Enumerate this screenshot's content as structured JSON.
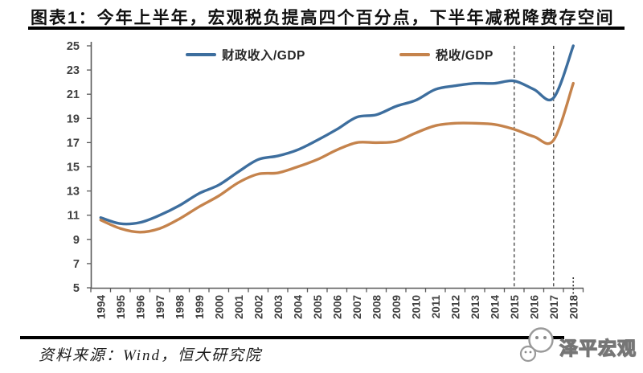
{
  "page": {
    "title": "图表1：今年上半年，宏观税负提高四个百分点，下半年减税降费存空间",
    "source_note": "资料来源：Wind，恒大研究院",
    "watermark": "泽平宏观"
  },
  "chart_data": {
    "type": "line",
    "title": "",
    "xlabel": "",
    "ylabel": "",
    "x": [
      "1994",
      "1995",
      "1996",
      "1997",
      "1998",
      "1999",
      "2000",
      "2001",
      "2002",
      "2003",
      "2004",
      "2005",
      "2006",
      "2007",
      "2008",
      "2009",
      "2010",
      "2011",
      "2012",
      "2013",
      "2014",
      "2015",
      "2016",
      "2017",
      "2018"
    ],
    "series": [
      {
        "name": "财政收入/GDP",
        "color": "#3d6e9e",
        "values": [
          10.8,
          10.3,
          10.4,
          11.0,
          11.8,
          12.8,
          13.5,
          14.6,
          15.6,
          15.9,
          16.4,
          17.2,
          18.1,
          19.1,
          19.3,
          20.0,
          20.5,
          21.4,
          21.7,
          21.9,
          21.9,
          22.1,
          21.4,
          20.7,
          25.0
        ]
      },
      {
        "name": "税收/GDP",
        "color": "#c5834c",
        "values": [
          10.6,
          9.9,
          9.6,
          9.9,
          10.7,
          11.7,
          12.6,
          13.7,
          14.4,
          14.5,
          15.0,
          15.6,
          16.4,
          17.0,
          17.0,
          17.1,
          17.8,
          18.4,
          18.6,
          18.6,
          18.5,
          18.1,
          17.5,
          17.2,
          21.9
        ]
      }
    ],
    "ylim": [
      5,
      25
    ],
    "ytick_step": 2,
    "grid": false,
    "legend_position": "top-inside",
    "annotations": {
      "dashed_vlines": [
        "2015",
        "2017"
      ],
      "dotted_axis_mark": "2018"
    },
    "axis_color": "#595959",
    "tick_label_color": "#404040"
  }
}
